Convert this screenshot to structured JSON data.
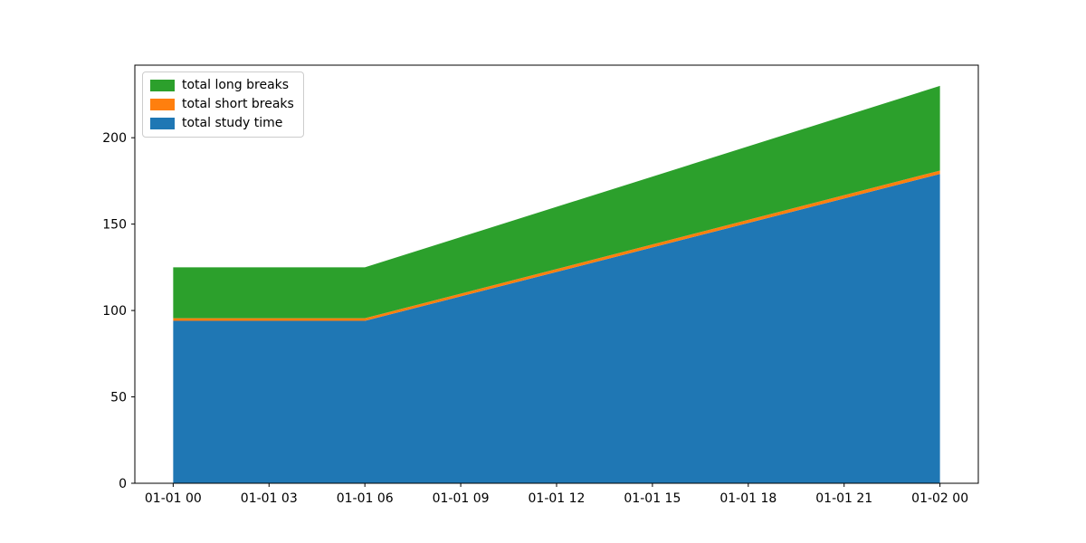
{
  "chart_data": {
    "type": "area",
    "stacked": true,
    "title": "",
    "xlabel": "",
    "ylabel": "",
    "x_hours": [
      0,
      6,
      24
    ],
    "x_point_labels": [
      "01-01 00",
      "01-01 06",
      "01-02 00"
    ],
    "series": [
      {
        "name": "total study time",
        "color": "#1f77b4",
        "values": [
          94,
          94,
          179
        ]
      },
      {
        "name": "total short breaks",
        "color": "#ff7f0e",
        "values": [
          1.5,
          1.5,
          2
        ]
      },
      {
        "name": "total long breaks",
        "color": "#2ca02c",
        "values": [
          29.5,
          29.5,
          49
        ]
      }
    ],
    "stacked_totals": [
      125,
      125,
      230
    ],
    "x_tick_hours": [
      0,
      3,
      6,
      9,
      12,
      15,
      18,
      21,
      24
    ],
    "x_tick_labels": [
      "01-01 00",
      "01-01 03",
      "01-01 06",
      "01-01 09",
      "01-01 12",
      "01-01 15",
      "01-01 18",
      "01-01 21",
      "01-02 00"
    ],
    "y_ticks": [
      0,
      50,
      100,
      150,
      200
    ],
    "ylim": [
      0,
      242
    ],
    "xlim_hours": [
      -1.2,
      25.2
    ],
    "grid": false,
    "axis_color": "#000000",
    "background": "#ffffff",
    "legend": {
      "position": "upper left",
      "items": [
        {
          "label": "total long breaks",
          "color": "#2ca02c"
        },
        {
          "label": "total short breaks",
          "color": "#ff7f0e"
        },
        {
          "label": "total study time",
          "color": "#1f77b4"
        }
      ]
    }
  }
}
